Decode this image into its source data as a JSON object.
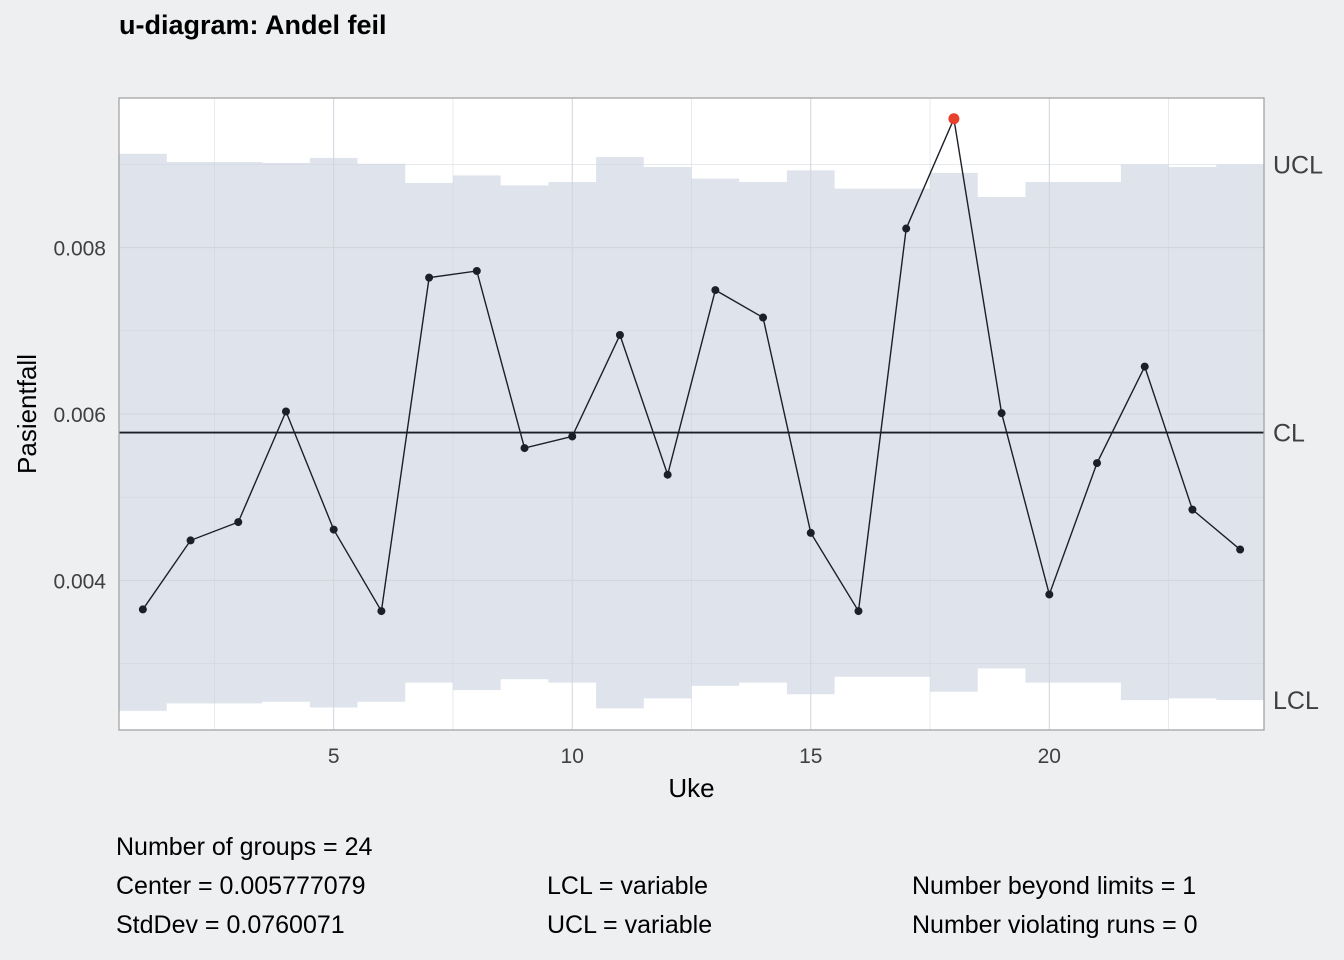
{
  "chart_data": {
    "type": "line",
    "title": "u-diagram: Andel feil",
    "xlabel": "Uke",
    "ylabel": "Pasientfall",
    "x": [
      1,
      2,
      3,
      4,
      5,
      6,
      7,
      8,
      9,
      10,
      11,
      12,
      13,
      14,
      15,
      16,
      17,
      18,
      19,
      20,
      21,
      22,
      23,
      24
    ],
    "series": [
      {
        "values": [
          0.00365,
          0.00448,
          0.0047,
          0.00603,
          0.00461,
          0.00363,
          0.00764,
          0.00772,
          0.00559,
          0.00573,
          0.00695,
          0.00527,
          0.00749,
          0.00716,
          0.00457,
          0.00363,
          0.00823,
          0.00955,
          0.00601,
          0.00383,
          0.00541,
          0.00657,
          0.00485,
          0.00437
        ]
      }
    ],
    "ucl": [
      0.00913,
      0.00903,
      0.00903,
      0.00902,
      0.00908,
      0.00901,
      0.00878,
      0.00887,
      0.00875,
      0.00879,
      0.00909,
      0.00897,
      0.00883,
      0.00879,
      0.00893,
      0.00871,
      0.00871,
      0.0089,
      0.00861,
      0.00879,
      0.00879,
      0.009,
      0.00897,
      0.009
    ],
    "lcl": [
      0.00243,
      0.00252,
      0.00252,
      0.00254,
      0.00247,
      0.00254,
      0.00277,
      0.00268,
      0.00281,
      0.00277,
      0.00246,
      0.00258,
      0.00273,
      0.00277,
      0.00263,
      0.00284,
      0.00284,
      0.00266,
      0.00294,
      0.00277,
      0.00277,
      0.00256,
      0.00258,
      0.00256
    ],
    "center": 0.005777079,
    "beyond_limits_index": [
      18
    ],
    "xlim": [
      0.5,
      24.5
    ],
    "ylim": [
      0.0022,
      0.0098
    ],
    "x_ticks": [
      5,
      10,
      15,
      20
    ],
    "y_ticks": [
      0.004,
      0.006,
      0.008
    ],
    "y_tick_labels": [
      "0.004",
      "0.006",
      "0.008"
    ],
    "limit_labels": {
      "ucl": "UCL",
      "cl": "CL",
      "lcl": "LCL"
    },
    "grid": true,
    "colors": {
      "band": "#dfe4ec",
      "line": "#1b1f27",
      "highlight": "#e8402a",
      "grid": "#cfd4db",
      "frame": "#a3a3a3",
      "axis_text": "#404040"
    }
  },
  "stats": {
    "groups": "Number of groups = 24",
    "center": "Center = 0.005777079",
    "stddev": "StdDev = 0.0760071",
    "lcl": "LCL = variable",
    "ucl": "UCL = variable",
    "beyond": "Number beyond limits = 1",
    "runs": "Number violating runs = 0"
  }
}
